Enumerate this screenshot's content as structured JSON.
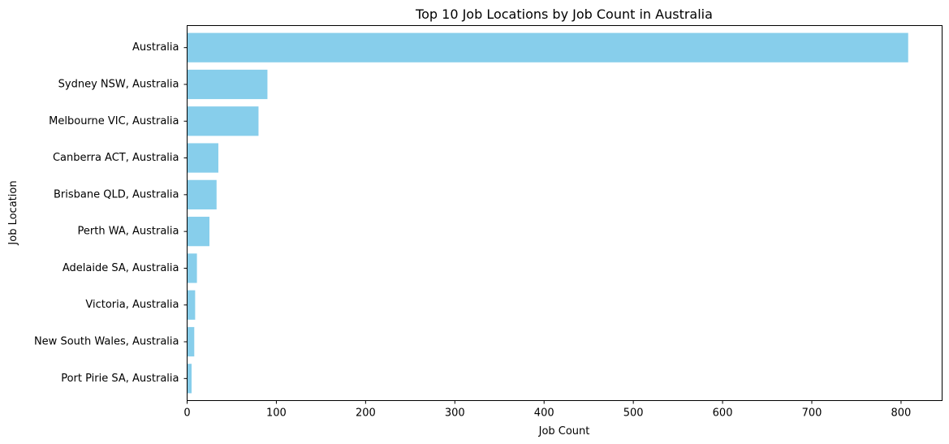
{
  "chart_data": {
    "type": "bar",
    "orientation": "horizontal",
    "title": "Top 10 Job Locations by Job Count in Australia",
    "xlabel": "Job Count",
    "ylabel": "Job Location",
    "categories": [
      "Australia",
      "Sydney NSW, Australia",
      "Melbourne VIC, Australia",
      "Canberra ACT, Australia",
      "Brisbane QLD, Australia",
      "Perth WA, Australia",
      "Adelaide SA, Australia",
      "Victoria, Australia",
      "New South Wales, Australia",
      "Port Pirie SA, Australia"
    ],
    "values": [
      808,
      90,
      80,
      35,
      33,
      25,
      11,
      9,
      8,
      5
    ],
    "xlim": [
      0,
      846
    ],
    "xticks": [
      0,
      100,
      200,
      300,
      400,
      500,
      600,
      700,
      800
    ],
    "bar_color": "#87CEEB",
    "grid": false,
    "legend": "none"
  }
}
